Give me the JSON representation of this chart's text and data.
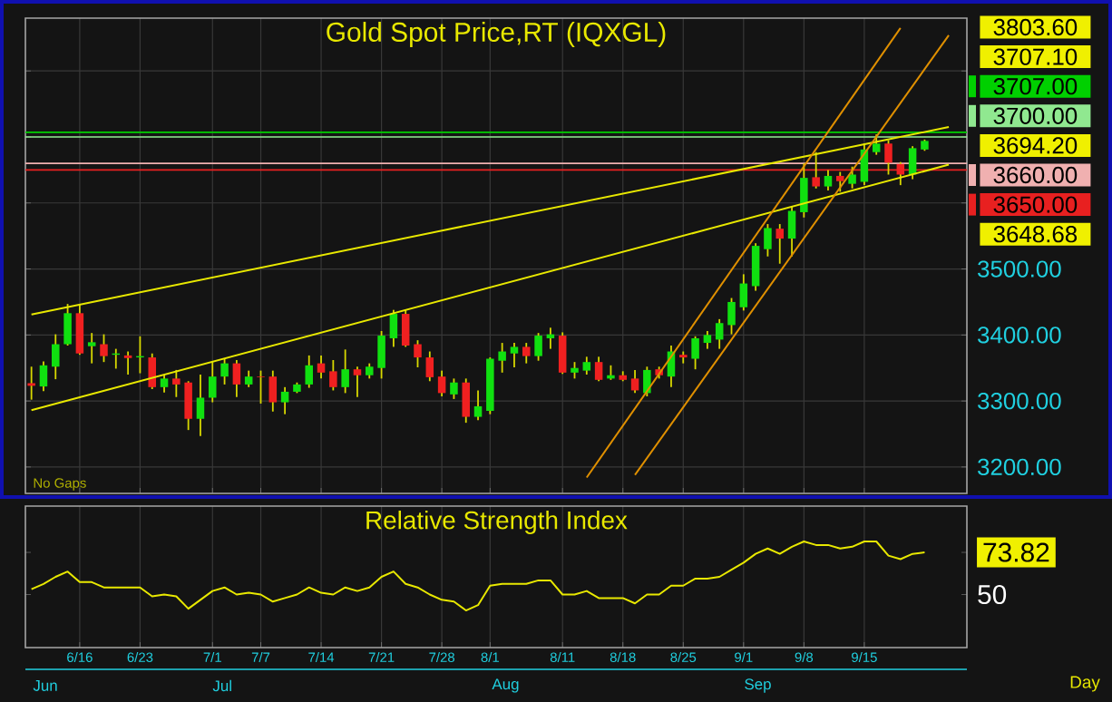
{
  "chart_data": [
    {
      "type": "candlestick",
      "title": "Gold Spot Price,RT (IQXGL)",
      "categories": [
        null,
        null,
        null,
        null,
        null,
        null,
        null,
        null,
        null,
        null,
        null,
        null,
        null,
        null,
        null,
        null,
        null,
        null,
        null,
        null,
        null,
        null,
        null,
        null,
        null,
        null,
        null,
        null,
        null,
        null,
        null,
        null,
        null,
        null,
        null,
        null,
        null,
        null,
        null,
        null,
        null,
        null,
        null,
        null,
        null,
        null,
        null,
        null,
        null,
        null,
        null,
        null,
        null,
        null,
        null,
        null,
        null,
        null,
        null,
        null,
        null,
        null,
        null,
        null,
        null,
        null,
        null,
        null,
        null,
        null,
        null,
        null,
        null,
        null,
        null,
        null,
        null,
        null
      ],
      "ohlc": [
        [
          3327,
          3352,
          3302,
          3323
        ],
        [
          3322,
          3360,
          3315,
          3354
        ],
        [
          3352,
          3401,
          3333,
          3386
        ],
        [
          3386,
          3447,
          3384,
          3433
        ],
        [
          3433,
          3447,
          3370,
          3372
        ],
        [
          3383,
          3403,
          3357,
          3389
        ],
        [
          3386,
          3401,
          3359,
          3368
        ],
        [
          3370,
          3379,
          3349,
          3372
        ],
        [
          3369,
          3375,
          3340,
          3365
        ],
        [
          3366,
          3398,
          3342,
          3368
        ],
        [
          3366,
          3372,
          3318,
          3321
        ],
        [
          3321,
          3340,
          3313,
          3334
        ],
        [
          3334,
          3347,
          3306,
          3325
        ],
        [
          3328,
          3330,
          3256,
          3273
        ],
        [
          3273,
          3340,
          3247,
          3305
        ],
        [
          3305,
          3359,
          3298,
          3337
        ],
        [
          3337,
          3364,
          3325,
          3357
        ],
        [
          3357,
          3362,
          3306,
          3325
        ],
        [
          3325,
          3346,
          3321,
          3337
        ],
        [
          3337,
          3346,
          3296,
          3336
        ],
        [
          3337,
          3346,
          3284,
          3298
        ],
        [
          3298,
          3321,
          3280,
          3314
        ],
        [
          3314,
          3328,
          3312,
          3325
        ],
        [
          3325,
          3369,
          3320,
          3354
        ],
        [
          3357,
          3369,
          3334,
          3343
        ],
        [
          3345,
          3362,
          3316,
          3321
        ],
        [
          3321,
          3378,
          3312,
          3348
        ],
        [
          3348,
          3352,
          3306,
          3339
        ],
        [
          3339,
          3357,
          3334,
          3352
        ],
        [
          3350,
          3406,
          3334,
          3399
        ],
        [
          3395,
          3438,
          3382,
          3432
        ],
        [
          3432,
          3438,
          3382,
          3384
        ],
        [
          3386,
          3392,
          3351,
          3366
        ],
        [
          3366,
          3375,
          3330,
          3336
        ],
        [
          3337,
          3346,
          3307,
          3312
        ],
        [
          3310,
          3334,
          3303,
          3328
        ],
        [
          3328,
          3334,
          3267,
          3276
        ],
        [
          3276,
          3316,
          3271,
          3292
        ],
        [
          3285,
          3366,
          3280,
          3364
        ],
        [
          3361,
          3388,
          3343,
          3375
        ],
        [
          3372,
          3388,
          3351,
          3382
        ],
        [
          3382,
          3388,
          3357,
          3368
        ],
        [
          3368,
          3403,
          3361,
          3399
        ],
        [
          3395,
          3411,
          3379,
          3401
        ],
        [
          3399,
          3404,
          3341,
          3343
        ],
        [
          3343,
          3359,
          3334,
          3350
        ],
        [
          3346,
          3367,
          3340,
          3359
        ],
        [
          3359,
          3367,
          3330,
          3332
        ],
        [
          3334,
          3354,
          3332,
          3339
        ],
        [
          3339,
          3345,
          3330,
          3332
        ],
        [
          3334,
          3347,
          3312,
          3316
        ],
        [
          3312,
          3352,
          3307,
          3347
        ],
        [
          3348,
          3352,
          3334,
          3339
        ],
        [
          3337,
          3384,
          3321,
          3375
        ],
        [
          3370,
          3375,
          3357,
          3366
        ],
        [
          3364,
          3398,
          3348,
          3395
        ],
        [
          3388,
          3406,
          3379,
          3400
        ],
        [
          3393,
          3424,
          3379,
          3418
        ],
        [
          3415,
          3456,
          3401,
          3450
        ],
        [
          3442,
          3492,
          3437,
          3478
        ],
        [
          3474,
          3539,
          3467,
          3535
        ],
        [
          3530,
          3568,
          3519,
          3562
        ],
        [
          3561,
          3568,
          3508,
          3546
        ],
        [
          3546,
          3595,
          3519,
          3588
        ],
        [
          3586,
          3660,
          3578,
          3638
        ],
        [
          3639,
          3677,
          3622,
          3625
        ],
        [
          3625,
          3650,
          3619,
          3641
        ],
        [
          3641,
          3647,
          3617,
          3633
        ],
        [
          3629,
          3655,
          3622,
          3643
        ],
        [
          3632,
          3690,
          3627,
          3681
        ],
        [
          3677,
          3704,
          3673,
          3690
        ],
        [
          3690,
          3695,
          3643,
          3661
        ],
        [
          3659,
          3662,
          3627,
          3643
        ],
        [
          3643,
          3686,
          3636,
          3683
        ],
        [
          3681,
          3696,
          3679,
          3694
        ],
        null,
        null,
        null
      ],
      "series": [
        {
          "type": "line",
          "color": "#e8e800",
          "values": [
            3431,
            null,
            null,
            null,
            null,
            null,
            null,
            null,
            null,
            null,
            null,
            null,
            null,
            null,
            null,
            null,
            null,
            null,
            null,
            null,
            null,
            null,
            null,
            null,
            null,
            null,
            null,
            null,
            null,
            null,
            null,
            null,
            null,
            null,
            null,
            null,
            null,
            null,
            null,
            null,
            null,
            null,
            null,
            null,
            null,
            null,
            null,
            null,
            null,
            null,
            null,
            null,
            null,
            null,
            null,
            null,
            null,
            null,
            null,
            null,
            null,
            null,
            null,
            null,
            null,
            null,
            null,
            null,
            null,
            null,
            null,
            null,
            null,
            null,
            null,
            null,
            3715,
            null
          ]
        },
        {
          "type": "line",
          "color": "#e8e800",
          "values": [
            3286,
            null,
            null,
            null,
            null,
            null,
            null,
            null,
            null,
            null,
            null,
            null,
            null,
            null,
            null,
            null,
            null,
            null,
            null,
            null,
            null,
            null,
            null,
            null,
            null,
            null,
            null,
            null,
            null,
            null,
            null,
            null,
            null,
            null,
            null,
            null,
            null,
            null,
            null,
            null,
            null,
            null,
            null,
            null,
            null,
            null,
            null,
            null,
            null,
            null,
            null,
            null,
            null,
            null,
            null,
            null,
            null,
            null,
            null,
            null,
            null,
            null,
            null,
            null,
            null,
            null,
            null,
            null,
            null,
            null,
            null,
            null,
            null,
            null,
            null,
            null,
            3658,
            null
          ]
        },
        {
          "type": "line",
          "color": "#e09000",
          "values": [
            null,
            null,
            null,
            null,
            null,
            null,
            null,
            null,
            null,
            null,
            null,
            null,
            null,
            null,
            null,
            null,
            null,
            null,
            null,
            null,
            null,
            null,
            null,
            null,
            null,
            null,
            null,
            null,
            null,
            null,
            null,
            null,
            null,
            null,
            null,
            null,
            null,
            null,
            null,
            null,
            null,
            null,
            null,
            null,
            null,
            null,
            3184,
            null,
            null,
            null,
            null,
            null,
            null,
            null,
            null,
            null,
            null,
            null,
            null,
            null,
            null,
            null,
            null,
            null,
            null,
            null,
            null,
            null,
            null,
            null,
            null,
            null,
            3865,
            null,
            null,
            null,
            null,
            null
          ]
        },
        {
          "type": "line",
          "color": "#e09000",
          "values": [
            null,
            null,
            null,
            null,
            null,
            null,
            null,
            null,
            null,
            null,
            null,
            null,
            null,
            null,
            null,
            null,
            null,
            null,
            null,
            null,
            null,
            null,
            null,
            null,
            null,
            null,
            null,
            null,
            null,
            null,
            null,
            null,
            null,
            null,
            null,
            null,
            null,
            null,
            null,
            null,
            null,
            null,
            null,
            null,
            null,
            null,
            null,
            null,
            null,
            null,
            3188,
            null,
            null,
            null,
            null,
            null,
            null,
            null,
            null,
            null,
            null,
            null,
            null,
            null,
            null,
            null,
            null,
            null,
            null,
            null,
            null,
            null,
            null,
            null,
            null,
            null,
            3854,
            null
          ]
        }
      ],
      "ylim": [
        3160,
        3880
      ],
      "yticks": [
        {
          "value": 3200,
          "label": "3200.00"
        },
        {
          "value": 3300,
          "label": "3300.00"
        },
        {
          "value": 3400,
          "label": "3400.00"
        },
        {
          "value": 3500,
          "label": "3500.00"
        },
        {
          "value": 3600,
          "label": null
        },
        {
          "value": 3700,
          "label": null
        },
        {
          "value": 3800,
          "label": null
        }
      ],
      "ref_lines": [
        {
          "axis": "y",
          "value": 3707,
          "label": "3707.00",
          "color": "#00d000"
        },
        {
          "axis": "y",
          "value": 3700,
          "label": "3700.00",
          "color": "#90e890"
        },
        {
          "axis": "y",
          "value": 3660,
          "label": "3660.00",
          "color": "#f0b0b0"
        },
        {
          "axis": "y",
          "value": 3650,
          "label": "3650.00",
          "color": "#e82020"
        }
      ],
      "annotations": [
        "No Gaps",
        "3803.60",
        "3707.10",
        "3694.20",
        "3648.68"
      ],
      "legend": "right",
      "grid": true,
      "tick_labels": "y"
    },
    {
      "type": "line",
      "title": "Relative Strength Index",
      "categories": [
        null,
        null,
        null,
        null,
        "6/16",
        null,
        null,
        null,
        null,
        "6/23",
        null,
        null,
        null,
        null,
        null,
        "7/1",
        null,
        null,
        null,
        "7/7",
        null,
        null,
        null,
        null,
        "7/14",
        null,
        null,
        null,
        null,
        "7/21",
        null,
        null,
        null,
        null,
        "7/28",
        null,
        null,
        null,
        "8/1",
        null,
        null,
        null,
        null,
        null,
        "8/11",
        null,
        null,
        null,
        null,
        "8/18",
        null,
        null,
        null,
        null,
        "8/25",
        null,
        null,
        null,
        null,
        "9/1",
        null,
        null,
        null,
        null,
        "9/8",
        null,
        null,
        null,
        null,
        "9/15",
        null,
        null,
        null,
        null,
        null,
        null,
        null,
        null
      ],
      "series": [
        {
          "color": "#e8e800",
          "values": [
            53,
            56,
            60,
            63,
            57,
            57,
            54,
            54,
            54,
            54,
            49,
            50,
            49,
            42,
            47,
            52,
            54,
            50,
            51,
            50,
            46,
            48,
            50,
            54,
            51,
            50,
            54,
            52,
            54,
            60,
            63,
            56,
            54,
            50,
            47,
            46,
            41,
            44,
            55,
            56,
            56,
            56,
            58,
            58,
            50,
            50,
            52,
            48,
            48,
            48,
            45,
            50,
            50,
            55,
            55,
            59,
            59,
            60,
            64,
            68,
            73,
            76,
            73,
            77,
            80,
            78,
            78,
            76,
            77,
            80,
            80,
            72,
            70,
            73,
            73.82,
            null,
            null,
            null
          ]
        }
      ],
      "ylim": [
        20,
        100
      ],
      "yticks": [
        50,
        {
          "value": 73.82,
          "label": "73.82"
        }
      ],
      "annotations": [
        "Jun",
        "Jul",
        "Aug",
        "Sep",
        "Day"
      ],
      "grid": "x"
    }
  ]
}
